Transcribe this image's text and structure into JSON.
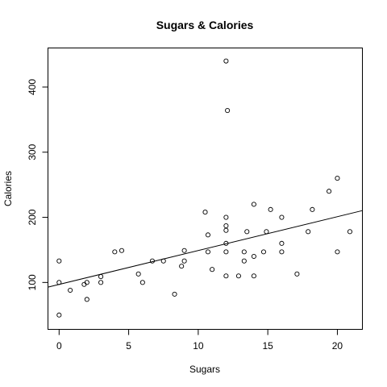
{
  "chart_data": {
    "type": "scatter",
    "title": "Sugars & Calories",
    "xlabel": "Sugars",
    "ylabel": "Calories",
    "xlim": [
      -0.8,
      21.8
    ],
    "ylim": [
      28,
      460
    ],
    "x_ticks": [
      0,
      5,
      10,
      15,
      20
    ],
    "y_ticks": [
      100,
      200,
      300,
      400
    ],
    "grid": false,
    "legend": "none",
    "points": [
      {
        "x": 0,
        "y": 133
      },
      {
        "x": 0,
        "y": 100
      },
      {
        "x": 0,
        "y": 50
      },
      {
        "x": 0.8,
        "y": 88
      },
      {
        "x": 1.8,
        "y": 97
      },
      {
        "x": 2.0,
        "y": 100
      },
      {
        "x": 2.0,
        "y": 74
      },
      {
        "x": 3.0,
        "y": 109
      },
      {
        "x": 3.0,
        "y": 100
      },
      {
        "x": 4.0,
        "y": 147
      },
      {
        "x": 4.5,
        "y": 149
      },
      {
        "x": 5.7,
        "y": 113
      },
      {
        "x": 6.0,
        "y": 100
      },
      {
        "x": 6.7,
        "y": 133
      },
      {
        "x": 7.5,
        "y": 133
      },
      {
        "x": 8.3,
        "y": 82
      },
      {
        "x": 8.8,
        "y": 125
      },
      {
        "x": 9.0,
        "y": 149
      },
      {
        "x": 9.0,
        "y": 133
      },
      {
        "x": 10.5,
        "y": 208
      },
      {
        "x": 10.7,
        "y": 173
      },
      {
        "x": 10.7,
        "y": 147
      },
      {
        "x": 11.0,
        "y": 120
      },
      {
        "x": 12.0,
        "y": 440
      },
      {
        "x": 12.1,
        "y": 364
      },
      {
        "x": 12.0,
        "y": 200
      },
      {
        "x": 12.0,
        "y": 187
      },
      {
        "x": 12.0,
        "y": 180
      },
      {
        "x": 12.0,
        "y": 160
      },
      {
        "x": 12.0,
        "y": 147
      },
      {
        "x": 12.0,
        "y": 110
      },
      {
        "x": 12.9,
        "y": 110
      },
      {
        "x": 13.3,
        "y": 133
      },
      {
        "x": 13.3,
        "y": 147
      },
      {
        "x": 13.5,
        "y": 178
      },
      {
        "x": 14.0,
        "y": 220
      },
      {
        "x": 14.0,
        "y": 140
      },
      {
        "x": 14.0,
        "y": 110
      },
      {
        "x": 14.7,
        "y": 147
      },
      {
        "x": 14.9,
        "y": 178
      },
      {
        "x": 15.2,
        "y": 212
      },
      {
        "x": 16.0,
        "y": 200
      },
      {
        "x": 16.0,
        "y": 160
      },
      {
        "x": 16.0,
        "y": 147
      },
      {
        "x": 17.1,
        "y": 113
      },
      {
        "x": 17.9,
        "y": 178
      },
      {
        "x": 18.2,
        "y": 212
      },
      {
        "x": 19.4,
        "y": 240
      },
      {
        "x": 20.0,
        "y": 260
      },
      {
        "x": 20.0,
        "y": 147
      },
      {
        "x": 20.9,
        "y": 178
      }
    ],
    "fit_line": {
      "intercept": 97,
      "slope": 5.2
    }
  }
}
